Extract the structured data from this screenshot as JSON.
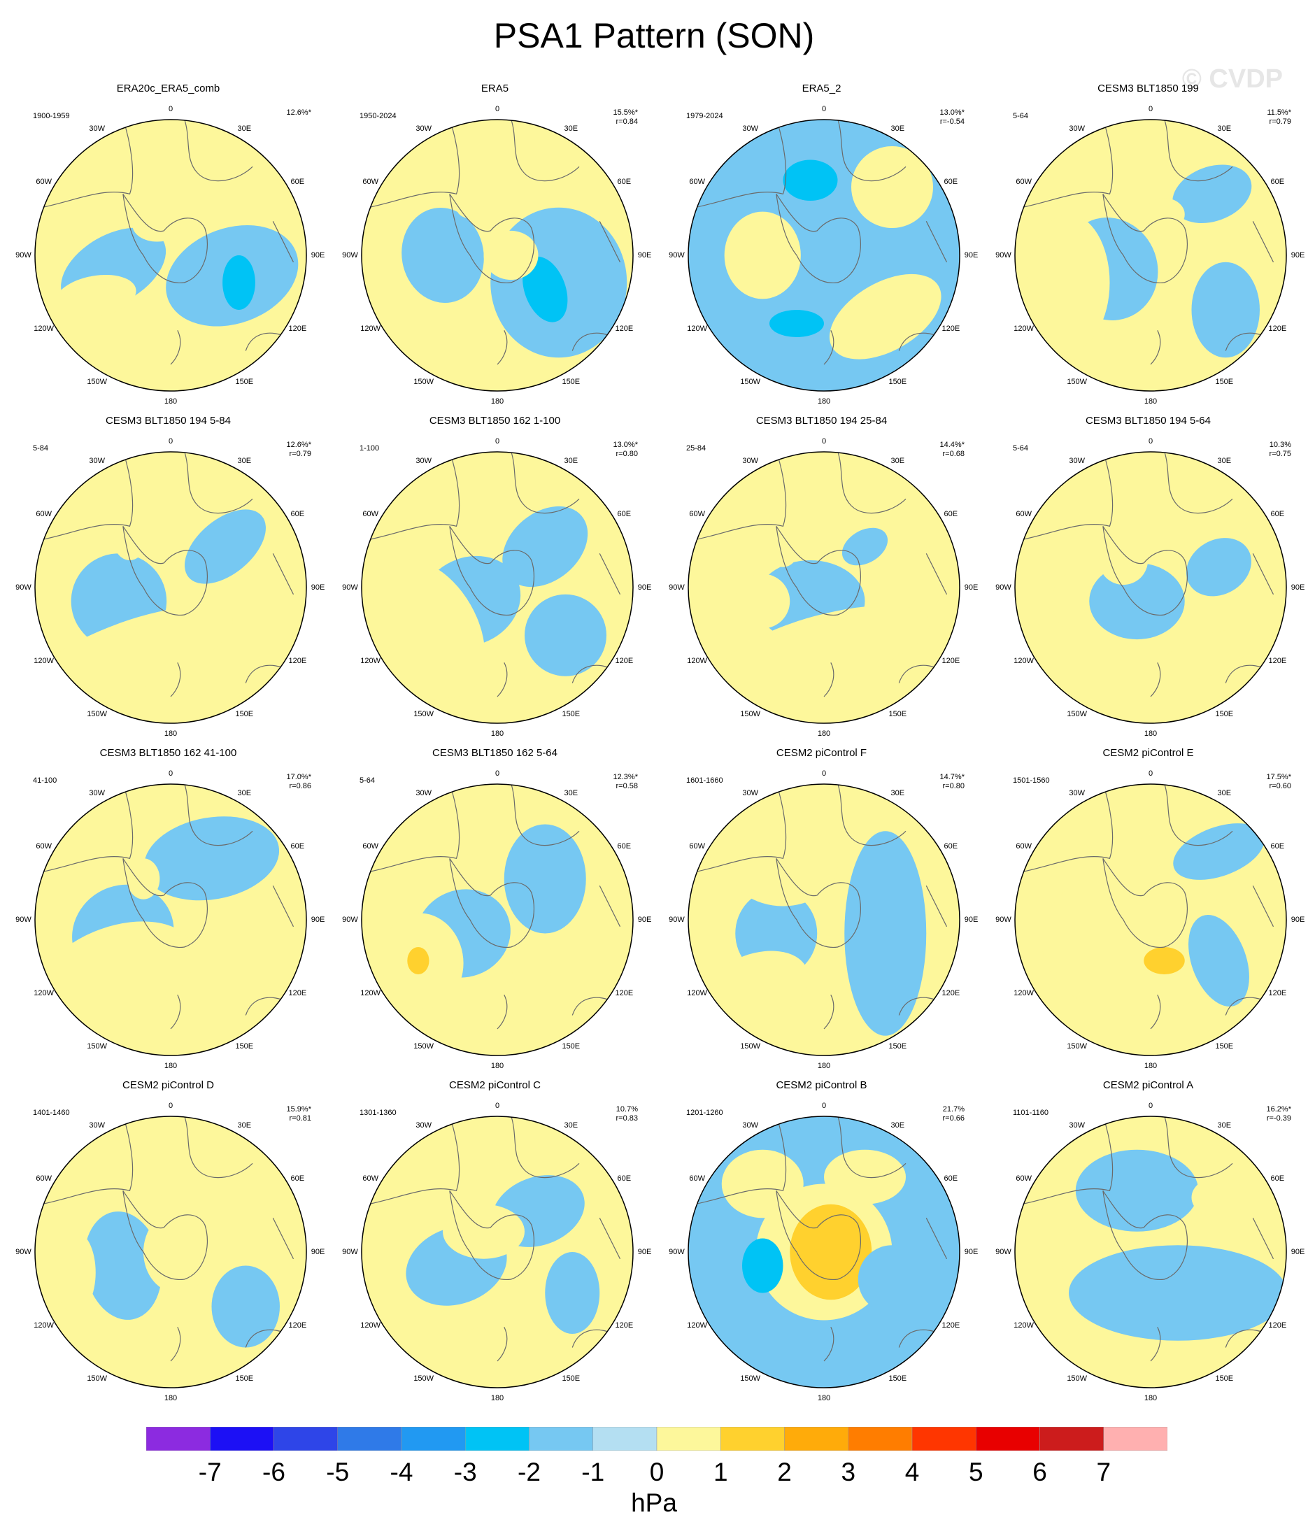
{
  "title": "PSA1 Pattern (SON)",
  "watermark": "© CVDP",
  "longitude_labels": [
    "0",
    "30E",
    "60E",
    "90E",
    "120E",
    "150E",
    "180",
    "150W",
    "120W",
    "90W",
    "60W",
    "30W"
  ],
  "colors": {
    "ocean_neg1": "#b4dff2",
    "ocean_pos1": "#fdf79b",
    "coast": "#6a6a6a"
  },
  "panels": [
    {
      "title": "ERA20c_ERA5_comb",
      "years": "1900-1959",
      "pct": "12.6%*",
      "r": "",
      "blobs": [
        [
          -0.4,
          0.1,
          0.22,
          0.16,
          -30,
          -4
        ],
        [
          -0.42,
          0.1,
          0.42,
          0.25,
          -30,
          -1
        ],
        [
          -0.55,
          0.3,
          0.3,
          0.15,
          -10,
          1
        ],
        [
          -0.1,
          -0.22,
          0.18,
          0.12,
          0,
          1
        ],
        [
          0.45,
          0.15,
          0.5,
          0.35,
          -20,
          -1
        ],
        [
          0.5,
          0.2,
          0.12,
          0.2,
          0,
          -2
        ]
      ]
    },
    {
      "title": "ERA5",
      "years": "1950-2024",
      "pct": "15.5%*",
      "r": "r=0.84",
      "blobs": [
        [
          -0.4,
          0.0,
          0.18,
          0.22,
          -10,
          -4
        ],
        [
          -0.4,
          0.0,
          0.3,
          0.35,
          -10,
          -1
        ],
        [
          0.45,
          0.2,
          0.5,
          0.55,
          0,
          -1
        ],
        [
          0.35,
          0.25,
          0.15,
          0.25,
          -20,
          -2
        ],
        [
          0.1,
          0.0,
          0.2,
          0.18,
          0,
          1
        ],
        [
          -0.2,
          -0.35,
          0.1,
          0.08,
          0,
          1
        ]
      ]
    },
    {
      "title": "ERA5_2",
      "years": "1979-2024",
      "pct": "13.0%*",
      "r": "r=-0.54",
      "blobs": [
        [
          0.0,
          0.0,
          1.2,
          1.2,
          0,
          -1
        ],
        [
          -0.45,
          0.0,
          0.18,
          0.2,
          0,
          2
        ],
        [
          -0.45,
          0.0,
          0.28,
          0.32,
          0,
          1
        ],
        [
          0.45,
          0.45,
          0.45,
          0.25,
          -30,
          1
        ],
        [
          0.5,
          0.3,
          0.2,
          0.12,
          -30,
          1
        ],
        [
          -0.1,
          -0.55,
          0.2,
          0.15,
          0,
          -2
        ],
        [
          -0.2,
          0.5,
          0.2,
          0.1,
          0,
          -2
        ],
        [
          0.5,
          -0.5,
          0.3,
          0.3,
          0,
          1
        ]
      ]
    },
    {
      "title": "CESM3 BLT1850 199",
      "years": "5-64",
      "pct": "11.5%*",
      "r": "r=0.79",
      "blobs": [
        [
          -0.3,
          0.1,
          0.18,
          0.2,
          -20,
          -4
        ],
        [
          -0.3,
          0.1,
          0.35,
          0.38,
          -20,
          -1
        ],
        [
          -0.6,
          0.2,
          0.3,
          0.5,
          0,
          1
        ],
        [
          0.45,
          -0.45,
          0.3,
          0.2,
          -20,
          -1
        ],
        [
          0.55,
          0.4,
          0.25,
          0.35,
          0,
          -1
        ],
        [
          0.1,
          -0.3,
          0.15,
          0.12,
          0,
          1
        ]
      ]
    },
    {
      "title": "CESM3 BLT1850 194 5-84",
      "years": "5-84",
      "pct": "12.6%*",
      "r": "r=0.79",
      "blobs": [
        [
          -0.38,
          0.1,
          0.18,
          0.2,
          -20,
          -3
        ],
        [
          -0.38,
          0.1,
          0.35,
          0.35,
          -20,
          -1
        ],
        [
          -0.3,
          0.5,
          0.8,
          0.25,
          -20,
          1
        ],
        [
          0.4,
          -0.3,
          0.35,
          0.2,
          -40,
          -1
        ],
        [
          -0.3,
          -0.35,
          0.12,
          0.15,
          0,
          1
        ]
      ]
    },
    {
      "title": "CESM3 BLT1850 162 1-100",
      "years": "1-100",
      "pct": "13.0%*",
      "r": "r=0.80",
      "blobs": [
        [
          -0.2,
          0.1,
          0.22,
          0.18,
          -25,
          -3
        ],
        [
          -0.2,
          0.1,
          0.38,
          0.32,
          -25,
          -1
        ],
        [
          -0.5,
          0.3,
          0.35,
          0.55,
          -30,
          1
        ],
        [
          0.35,
          -0.3,
          0.35,
          0.25,
          -40,
          -1
        ],
        [
          0.5,
          0.35,
          0.3,
          0.3,
          0,
          -1
        ]
      ]
    },
    {
      "title": "CESM3 BLT1850 194 25-84",
      "years": "25-84",
      "pct": "14.4%*",
      "r": "r=0.68",
      "blobs": [
        [
          -0.1,
          0.1,
          0.2,
          0.15,
          0,
          -3
        ],
        [
          -0.1,
          0.1,
          0.4,
          0.3,
          0,
          -1
        ],
        [
          0.0,
          0.45,
          0.8,
          0.25,
          -15,
          1
        ],
        [
          -0.3,
          -0.3,
          0.12,
          0.15,
          0,
          1
        ],
        [
          0.3,
          -0.3,
          0.18,
          0.12,
          -30,
          -1
        ],
        [
          -0.45,
          0.1,
          0.2,
          0.2,
          0,
          1
        ]
      ]
    },
    {
      "title": "CESM3 BLT1850 194 5-64",
      "years": "5-64",
      "pct": "10.3%",
      "r": "r=0.75",
      "blobs": [
        [
          -0.1,
          0.1,
          0.2,
          0.15,
          0,
          -3
        ],
        [
          -0.1,
          0.1,
          0.35,
          0.28,
          0,
          -1
        ],
        [
          0.5,
          -0.15,
          0.25,
          0.2,
          -30,
          -1
        ],
        [
          -0.2,
          -0.2,
          0.18,
          0.18,
          0,
          1
        ],
        [
          -0.6,
          0.1,
          0.12,
          0.2,
          0,
          1
        ],
        [
          0.4,
          0.5,
          0.35,
          0.15,
          -20,
          1
        ]
      ]
    },
    {
      "title": "CESM3 BLT1850 162 41-100",
      "years": "41-100",
      "pct": "17.0%*",
      "r": "r=0.86",
      "blobs": [
        [
          -0.35,
          0.1,
          0.2,
          0.2,
          -30,
          -4
        ],
        [
          -0.35,
          0.1,
          0.38,
          0.35,
          -30,
          -1
        ],
        [
          -0.4,
          0.4,
          0.6,
          0.35,
          -20,
          1
        ],
        [
          0.3,
          -0.45,
          0.5,
          0.3,
          -10,
          -1
        ],
        [
          -0.2,
          -0.3,
          0.12,
          0.15,
          0,
          1
        ]
      ]
    },
    {
      "title": "CESM3 BLT1850 162 5-64",
      "years": "5-64",
      "pct": "12.3%*",
      "r": "r=0.58",
      "blobs": [
        [
          -0.25,
          0.1,
          0.2,
          0.18,
          -20,
          -3
        ],
        [
          -0.25,
          0.1,
          0.35,
          0.32,
          -20,
          -1
        ],
        [
          -0.55,
          0.3,
          0.3,
          0.35,
          -10,
          1
        ],
        [
          -0.58,
          0.3,
          0.08,
          0.1,
          0,
          2
        ],
        [
          0.25,
          0.3,
          0.15,
          0.25,
          0,
          1
        ],
        [
          0.35,
          -0.3,
          0.3,
          0.4,
          0,
          -1
        ],
        [
          -0.2,
          -0.4,
          0.1,
          0.08,
          0,
          1
        ]
      ]
    },
    {
      "title": "CESM2 piControl F",
      "years": "1601-1660",
      "pct": "14.7%*",
      "r": "r=0.80",
      "blobs": [
        [
          -0.35,
          0.1,
          0.18,
          0.2,
          0,
          -3
        ],
        [
          -0.35,
          0.1,
          0.3,
          0.32,
          0,
          -1
        ],
        [
          -0.3,
          -0.4,
          0.25,
          0.2,
          0,
          2
        ],
        [
          -0.3,
          -0.4,
          0.4,
          0.3,
          0,
          1
        ],
        [
          0.45,
          0.1,
          0.3,
          0.75,
          0,
          -1
        ],
        [
          -0.5,
          0.5,
          0.4,
          0.25,
          -20,
          1
        ]
      ]
    },
    {
      "title": "CESM2 piControl E",
      "years": "1501-1560",
      "pct": "17.5%*",
      "r": "r=0.60",
      "blobs": [
        [
          -0.3,
          0.0,
          0.15,
          0.22,
          0,
          -4
        ],
        [
          -0.3,
          0.0,
          0.28,
          0.36,
          0,
          -1
        ],
        [
          -0.1,
          0.15,
          0.7,
          0.55,
          0,
          1
        ],
        [
          0.1,
          0.3,
          0.15,
          0.1,
          0,
          2
        ],
        [
          0.5,
          0.3,
          0.2,
          0.35,
          -20,
          -1
        ],
        [
          0.5,
          -0.5,
          0.35,
          0.18,
          -20,
          -1
        ],
        [
          0.0,
          -0.5,
          0.12,
          0.12,
          0,
          1
        ]
      ]
    },
    {
      "title": "CESM2 piControl D",
      "years": "1401-1460",
      "pct": "15.9%*",
      "r": "r=0.81",
      "blobs": [
        [
          -0.35,
          0.1,
          0.15,
          0.25,
          -10,
          -4
        ],
        [
          -0.35,
          0.1,
          0.28,
          0.4,
          -10,
          -1
        ],
        [
          -0.7,
          0.15,
          0.15,
          0.3,
          0,
          1
        ],
        [
          0.05,
          0.0,
          0.25,
          0.3,
          0,
          1
        ],
        [
          0.55,
          0.4,
          0.25,
          0.3,
          0,
          -1
        ],
        [
          -0.1,
          -0.3,
          0.1,
          0.12,
          0,
          1
        ]
      ]
    },
    {
      "title": "CESM2 piControl C",
      "years": "1301-1360",
      "pct": "10.7%",
      "r": "r=0.83",
      "blobs": [
        [
          -0.3,
          0.1,
          0.22,
          0.16,
          -20,
          -3
        ],
        [
          -0.3,
          0.1,
          0.38,
          0.28,
          -20,
          -1
        ],
        [
          0.3,
          -0.3,
          0.35,
          0.25,
          -20,
          -1
        ],
        [
          -0.1,
          -0.15,
          0.3,
          0.2,
          0,
          1
        ],
        [
          0.55,
          0.3,
          0.2,
          0.3,
          0,
          -1
        ],
        [
          -0.3,
          0.5,
          0.2,
          0.08,
          0,
          1
        ]
      ]
    },
    {
      "title": "CESM2 piControl B",
      "years": "1201-1260",
      "pct": "21.7%",
      "r": "r=0.66",
      "blobs": [
        [
          0.0,
          0.0,
          1.2,
          1.2,
          0,
          -1
        ],
        [
          0.0,
          0.0,
          0.5,
          0.5,
          0,
          1
        ],
        [
          0.05,
          0.0,
          0.3,
          0.35,
          0,
          2
        ],
        [
          -0.45,
          0.1,
          0.15,
          0.2,
          0,
          -2
        ],
        [
          0.5,
          0.2,
          0.25,
          0.25,
          0,
          -1
        ],
        [
          -0.45,
          -0.5,
          0.3,
          0.25,
          0,
          1
        ],
        [
          0.3,
          -0.55,
          0.3,
          0.2,
          0,
          1
        ]
      ]
    },
    {
      "title": "CESM2 piControl A",
      "years": "1101-1160",
      "pct": "16.2%*",
      "r": "r=-0.39",
      "blobs": [
        [
          0.0,
          0.0,
          1.2,
          1.2,
          0,
          1
        ],
        [
          -0.35,
          0.05,
          0.2,
          0.2,
          0,
          3
        ],
        [
          -0.35,
          0.05,
          0.3,
          0.3,
          0,
          1
        ],
        [
          -0.1,
          -0.45,
          0.25,
          0.15,
          0,
          -2
        ],
        [
          -0.1,
          -0.45,
          0.45,
          0.3,
          0,
          -1
        ],
        [
          0.2,
          0.3,
          0.8,
          0.35,
          0,
          -1
        ],
        [
          0.5,
          -0.4,
          0.2,
          0.15,
          0,
          1
        ]
      ]
    }
  ],
  "colorbar": {
    "labels": [
      "-7",
      "-6",
      "-5",
      "-4",
      "-3",
      "-2",
      "-1",
      "0",
      "1",
      "2",
      "3",
      "4",
      "5",
      "6",
      "7"
    ],
    "units": "hPa",
    "colors": [
      "#8c2be0",
      "#1c10f5",
      "#2e45e8",
      "#2f7ae8",
      "#2199f2",
      "#00c3f5",
      "#76c8f2",
      "#b4dff2",
      "#fdf79b",
      "#ffd12e",
      "#ffab0a",
      "#ff7d00",
      "#ff3600",
      "#e80000",
      "#cc1c1c",
      "#ffb0b0"
    ]
  }
}
